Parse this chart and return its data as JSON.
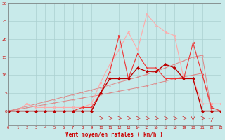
{
  "x": [
    0,
    1,
    2,
    3,
    4,
    5,
    6,
    7,
    8,
    9,
    10,
    11,
    12,
    13,
    14,
    15,
    16,
    17,
    18,
    19,
    20,
    21,
    22,
    23
  ],
  "line_flat": [
    0,
    0,
    0,
    0,
    0,
    0,
    0,
    0,
    0,
    0,
    0,
    0,
    0,
    0,
    0,
    0,
    0,
    0,
    0,
    0,
    0,
    0,
    0,
    0
  ],
  "line_dark_red": [
    0,
    0,
    0,
    0,
    0,
    0,
    0,
    0,
    0,
    0,
    5,
    9,
    9,
    9,
    12,
    11,
    11,
    13,
    12,
    9,
    9,
    0,
    0,
    0
  ],
  "line_med_red": [
    0,
    0,
    0,
    0,
    0,
    0,
    0,
    0,
    1,
    1,
    5,
    11,
    21,
    9,
    16,
    12,
    12,
    9,
    9,
    9,
    19,
    10,
    1,
    0
  ],
  "line_light_red": [
    0,
    0,
    2,
    1,
    1,
    1,
    1,
    1,
    1,
    2,
    8,
    13,
    17,
    22,
    17,
    27,
    24,
    22,
    21,
    9,
    9,
    2,
    2,
    2
  ],
  "line_diag1": [
    0,
    0.45,
    0.9,
    1.35,
    1.8,
    2.25,
    2.7,
    3.15,
    3.6,
    4.05,
    4.5,
    5,
    5.5,
    6,
    6.5,
    7,
    7.7,
    8.3,
    9,
    9.5,
    10,
    10.5,
    0,
    0
  ],
  "line_diag2": [
    0,
    0.65,
    1.3,
    1.95,
    2.6,
    3.25,
    3.9,
    4.55,
    5.2,
    5.85,
    6.5,
    7.2,
    8,
    8.7,
    9.4,
    10.2,
    11,
    12,
    13,
    14,
    15,
    15.5,
    0,
    0
  ],
  "bg_color": "#c8eaea",
  "grid_color": "#aad0d0",
  "color_dark": "#bb0000",
  "color_medium": "#ee3333",
  "color_light": "#ffaaaa",
  "color_diag": "#dd8888",
  "xlabel": "Vent moyen/en rafales ( km/h )",
  "ylim": [
    0,
    30
  ],
  "xlim": [
    0,
    23
  ],
  "yticks": [
    0,
    5,
    10,
    15,
    20,
    25,
    30
  ],
  "xticks": [
    0,
    1,
    2,
    3,
    4,
    5,
    6,
    7,
    8,
    9,
    10,
    11,
    12,
    13,
    14,
    15,
    16,
    17,
    18,
    19,
    20,
    21,
    22,
    23
  ]
}
